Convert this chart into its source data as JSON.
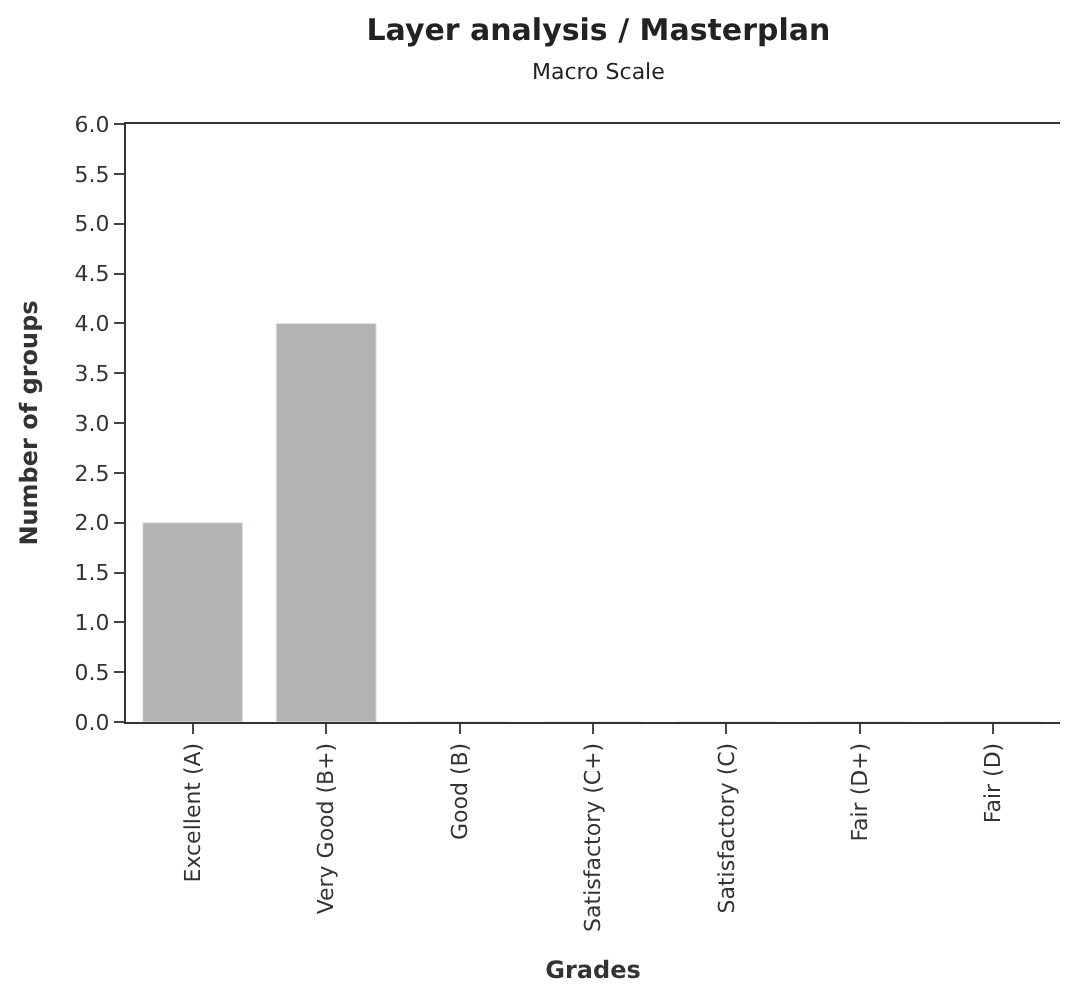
{
  "chart_data": {
    "type": "bar",
    "title": "Layer analysis / Masterplan",
    "subtitle": "Macro Scale",
    "xlabel": "Grades",
    "ylabel": "Number of groups",
    "categories": [
      "Excellent (A)",
      "Very Good (B+)",
      "Good (B)",
      "Satisfactory (C+)",
      "Satisfactory (C)",
      "Fair (D+)",
      "Fair (D)"
    ],
    "values": [
      2,
      4,
      0,
      0,
      0,
      0,
      0
    ],
    "color": "#b3b3b3",
    "ylim": [
      0,
      6
    ],
    "yticks": [
      {
        "value": 0,
        "label": "0.0"
      },
      {
        "value": 0.5,
        "label": "0.5"
      },
      {
        "value": 1,
        "label": "1.0"
      },
      {
        "value": 1.5,
        "label": "1.5"
      },
      {
        "value": 2,
        "label": "2.0"
      },
      {
        "value": 2.5,
        "label": "2.5"
      },
      {
        "value": 3,
        "label": "3.0"
      },
      {
        "value": 3.5,
        "label": "3.5"
      },
      {
        "value": 4,
        "label": "4.0"
      },
      {
        "value": 4.5,
        "label": "4.5"
      },
      {
        "value": 5,
        "label": "5.0"
      },
      {
        "value": 5.5,
        "label": "5.5"
      },
      {
        "value": 6,
        "label": "6.0"
      }
    ],
    "tick_labels": true
  }
}
